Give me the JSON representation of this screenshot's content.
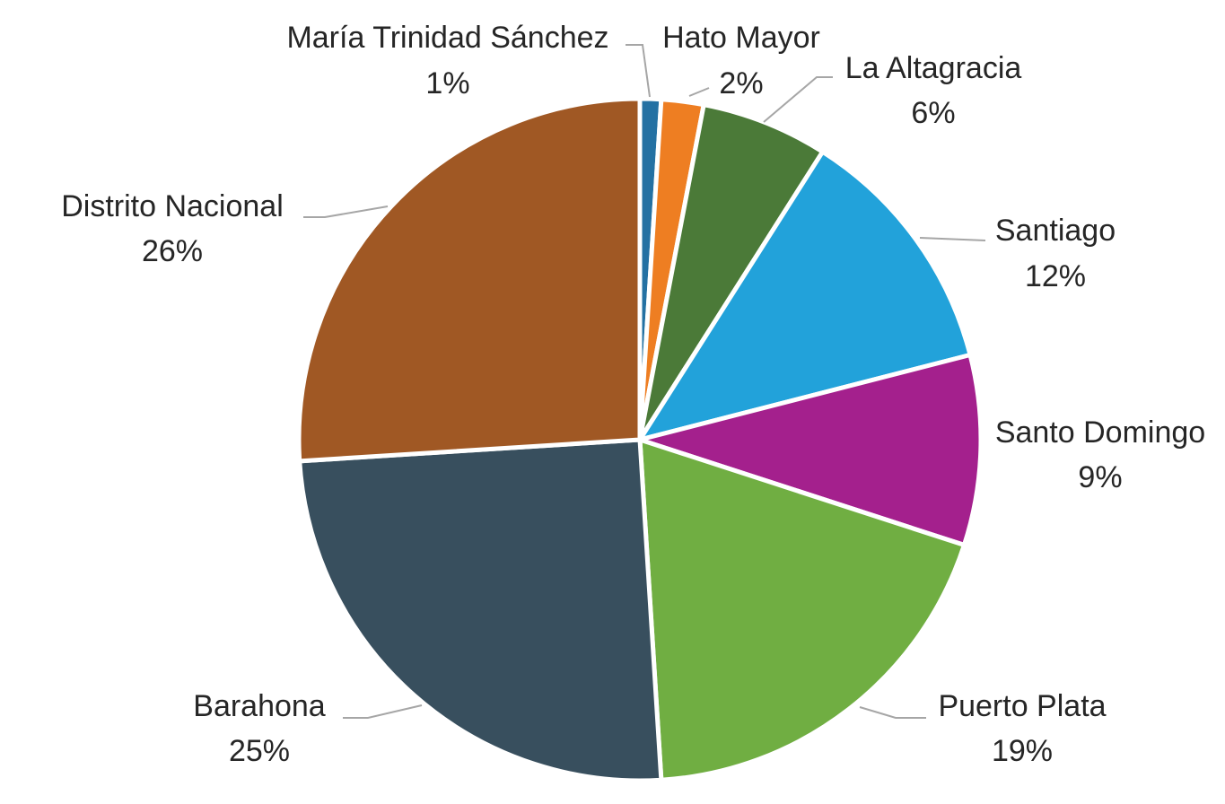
{
  "chart_data": {
    "type": "pie",
    "title": "",
    "legend": "none",
    "data_labels": "category name and percentage, outside with leader lines",
    "slices": [
      {
        "name": "María Trinidad Sánchez",
        "value": 1,
        "label": "1%",
        "color": "#2471A3"
      },
      {
        "name": "Hato Mayor",
        "value": 2,
        "label": "2%",
        "color": "#EE7E22"
      },
      {
        "name": "La Altagracia",
        "value": 6,
        "label": "6%",
        "color": "#4B7A38"
      },
      {
        "name": "Santiago",
        "value": 12,
        "label": "12%",
        "color": "#22A2DA"
      },
      {
        "name": "Santo Domingo",
        "value": 9,
        "label": "9%",
        "color": "#A4208D"
      },
      {
        "name": "Puerto Plata",
        "value": 19,
        "label": "19%",
        "color": "#70AE42"
      },
      {
        "name": "Barahona",
        "value": 25,
        "label": "25%",
        "color": "#384F5E"
      },
      {
        "name": "Distrito Nacional",
        "value": 26,
        "label": "26%",
        "color": "#A05824"
      }
    ]
  }
}
